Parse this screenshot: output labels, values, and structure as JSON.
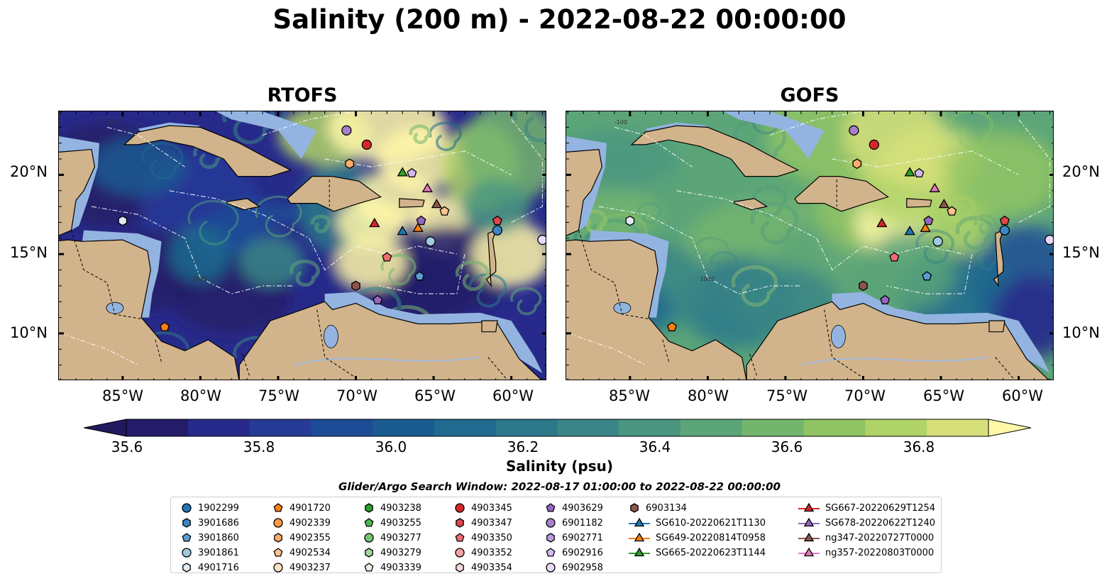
{
  "title": "Salinity (200 m) - 2022-08-22 00:00:00",
  "panels": [
    {
      "title": "RTOFS"
    },
    {
      "title": "GOFS"
    }
  ],
  "axes": {
    "lat_ticks": [
      "20°N",
      "15°N",
      "10°N"
    ],
    "lon_ticks": [
      "85°W",
      "80°W",
      "75°W",
      "70°W",
      "65°W",
      "60°W"
    ]
  },
  "colorbar": {
    "label": "Salinity (psu)",
    "ticks": [
      "35.6",
      "35.8",
      "36.0",
      "36.2",
      "36.4",
      "36.6",
      "36.8"
    ],
    "range": [
      35.6,
      36.9
    ],
    "step": 0.1,
    "colors": [
      "#241c69",
      "#272a8a",
      "#273a96",
      "#1d4c96",
      "#1a5c92",
      "#1f6a8e",
      "#2b788b",
      "#3a8686",
      "#4a9680",
      "#5ca578",
      "#74b56e",
      "#90c464",
      "#b0d368",
      "#d6e07a"
    ],
    "over_color": "#fff7a8",
    "under_color": "#201a5e"
  },
  "search_window": "Glider/Argo Search Window: 2022-08-17 01:00:00 to 2022-08-22 00:00:00",
  "land_color": "#d2b48c",
  "shelf_color": "#93b4e0",
  "legend": [
    {
      "label": "1902299",
      "marker": "circle",
      "color": "#1f77b4"
    },
    {
      "label": "3901686",
      "marker": "hexagon",
      "color": "#3b86c4"
    },
    {
      "label": "3901860",
      "marker": "pentagon",
      "color": "#5a9bd4"
    },
    {
      "label": "3901861",
      "marker": "circle",
      "color": "#9ecae1"
    },
    {
      "label": "4901716",
      "marker": "hexagon",
      "color": "#deebf7"
    },
    {
      "label": "4901720",
      "marker": "pentagon",
      "color": "#ff7f0e"
    },
    {
      "label": "4902339",
      "marker": "circle",
      "color": "#fd9a44"
    },
    {
      "label": "4902355",
      "marker": "hexagon",
      "color": "#fdae6b"
    },
    {
      "label": "4902534",
      "marker": "pentagon",
      "color": "#fdc28f"
    },
    {
      "label": "4903237",
      "marker": "circle",
      "color": "#fee0c2"
    },
    {
      "label": "4903238",
      "marker": "hexagon",
      "color": "#2ca02c"
    },
    {
      "label": "4903255",
      "marker": "pentagon",
      "color": "#4cb84c"
    },
    {
      "label": "4903277",
      "marker": "circle",
      "color": "#74c476"
    },
    {
      "label": "4903279",
      "marker": "hexagon",
      "color": "#a1d99b"
    },
    {
      "label": "4903339",
      "marker": "pentagon",
      "color": "#e5f5e0"
    },
    {
      "label": "4903345",
      "marker": "circle",
      "color": "#d62728"
    },
    {
      "label": "4903347",
      "marker": "hexagon",
      "color": "#e0474a"
    },
    {
      "label": "4903350",
      "marker": "pentagon",
      "color": "#ef6b6e"
    },
    {
      "label": "4903352",
      "marker": "circle",
      "color": "#f4a3a3"
    },
    {
      "label": "4903354",
      "marker": "hexagon",
      "color": "#fbd6d6"
    },
    {
      "label": "4903629",
      "marker": "pentagon",
      "color": "#9467bd"
    },
    {
      "label": "6901182",
      "marker": "circle",
      "color": "#a77fcb"
    },
    {
      "label": "6902771",
      "marker": "hexagon",
      "color": "#bc9be0"
    },
    {
      "label": "6902916",
      "marker": "pentagon",
      "color": "#d2b8f0"
    },
    {
      "label": "6902958",
      "marker": "circle",
      "color": "#ead9fa"
    },
    {
      "label": "6903134",
      "marker": "hexagon",
      "color": "#8c564b"
    },
    {
      "label": "SG610-20220621T1130",
      "marker": "triangle-line",
      "color": "#1f77b4"
    },
    {
      "label": "SG649-20220814T0958",
      "marker": "triangle-line",
      "color": "#ff7f0e"
    },
    {
      "label": "SG665-20220623T1144",
      "marker": "triangle-line",
      "color": "#2ca02c"
    },
    {
      "label": "SG667-20220629T1254",
      "marker": "triangle-line",
      "color": "#d62728"
    },
    {
      "label": "SG678-20220622T1240",
      "marker": "triangle-line",
      "color": "#9467bd"
    },
    {
      "label": "ng347-20220727T0000",
      "marker": "triangle-line",
      "color": "#8c564b"
    },
    {
      "label": "ng357-20220803T0000",
      "marker": "triangle-line",
      "color": "#e377c2"
    }
  ],
  "markers": [
    {
      "lon": -85.0,
      "lat": 17.1,
      "shape": "hexagon",
      "color": "#deebf7"
    },
    {
      "lon": -82.3,
      "lat": 10.4,
      "shape": "pentagon",
      "color": "#ff7f0e"
    },
    {
      "lon": -70.6,
      "lat": 22.8,
      "shape": "circle",
      "color": "#a77fcb"
    },
    {
      "lon": -69.3,
      "lat": 21.9,
      "shape": "circle",
      "color": "#d62728"
    },
    {
      "lon": -70.4,
      "lat": 20.7,
      "shape": "hexagon",
      "color": "#fdae6b"
    },
    {
      "lon": -67.0,
      "lat": 20.1,
      "shape": "triangle",
      "color": "#2ca02c"
    },
    {
      "lon": -66.4,
      "lat": 20.1,
      "shape": "pentagon",
      "color": "#d2b8f0"
    },
    {
      "lon": -65.4,
      "lat": 19.1,
      "shape": "triangle",
      "color": "#e377c2"
    },
    {
      "lon": -64.8,
      "lat": 18.1,
      "shape": "triangle",
      "color": "#8c564b"
    },
    {
      "lon": -64.3,
      "lat": 17.7,
      "shape": "pentagon",
      "color": "#fdc28f"
    },
    {
      "lon": -68.8,
      "lat": 16.9,
      "shape": "triangle",
      "color": "#d62728"
    },
    {
      "lon": -67.0,
      "lat": 16.4,
      "shape": "triangle",
      "color": "#1f77b4"
    },
    {
      "lon": -65.8,
      "lat": 17.1,
      "shape": "pentagon",
      "color": "#9467bd"
    },
    {
      "lon": -66.0,
      "lat": 16.6,
      "shape": "triangle",
      "color": "#ff7f0e"
    },
    {
      "lon": -65.2,
      "lat": 15.8,
      "shape": "circle",
      "color": "#9ecae1"
    },
    {
      "lon": -68.0,
      "lat": 14.8,
      "shape": "pentagon",
      "color": "#ef6b6e"
    },
    {
      "lon": -65.9,
      "lat": 13.6,
      "shape": "pentagon",
      "color": "#5a9bd4"
    },
    {
      "lon": -70.0,
      "lat": 13.0,
      "shape": "hexagon",
      "color": "#8c564b"
    },
    {
      "lon": -68.6,
      "lat": 12.1,
      "shape": "pentagon",
      "color": "#9467bd"
    },
    {
      "lon": -60.9,
      "lat": 17.1,
      "shape": "pentagon",
      "color": "#e0474a"
    },
    {
      "lon": -60.9,
      "lat": 16.5,
      "shape": "circle",
      "color": "#3b86c4"
    },
    {
      "lon": -58.0,
      "lat": 15.9,
      "shape": "circle",
      "color": "#ead9fa"
    }
  ]
}
